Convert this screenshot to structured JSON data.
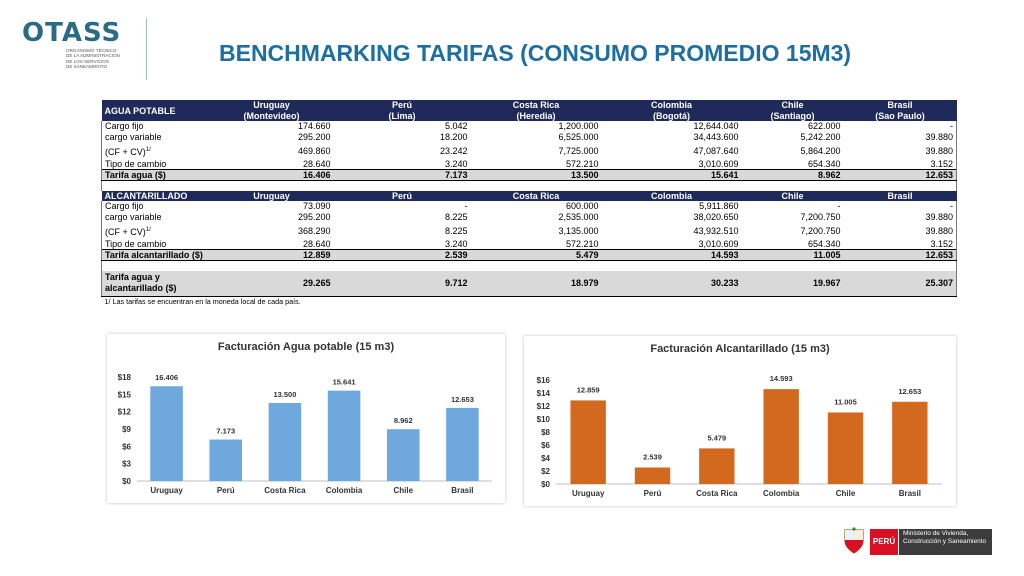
{
  "header": {
    "logo_text": "OTASS",
    "logo_subtitle": [
      "ORGANISMO TÉCNICO",
      "DE LA ADMINISTRACIÓN",
      "DE LOS SERVICIOS",
      "DE SANEAMIENTO"
    ],
    "title": "BENCHMARKING TARIFAS (CONSUMO PROMEDIO 15M3)"
  },
  "agua": {
    "section_label": "AGUA POTABLE",
    "countries": [
      {
        "name": "Uruguay",
        "city": "(Montevideo)"
      },
      {
        "name": "Perú",
        "city": "(Lima)"
      },
      {
        "name": "Costa Rica",
        "city": "(Heredia)"
      },
      {
        "name": "Colombia",
        "city": "(Bogotá)"
      },
      {
        "name": "Chile",
        "city": "(Santiago)"
      },
      {
        "name": "Brasil",
        "city": "(Sao Paulo)"
      }
    ],
    "rows": [
      {
        "label": "Cargo fijo",
        "values": [
          "174.660",
          "5.042",
          "1,200.000",
          "12,644.040",
          "622.000",
          "-"
        ]
      },
      {
        "label": "cargo variable",
        "values": [
          "295.200",
          "18.200",
          "6,525.000",
          "34,443.600",
          "5,242.200",
          "39.880"
        ]
      },
      {
        "label": "(CF + CV)",
        "sup": "1/",
        "values": [
          "469.860",
          "23.242",
          "7,725.000",
          "47,087.640",
          "5,864.200",
          "39.880"
        ]
      },
      {
        "label": "Tipo de cambio",
        "values": [
          "28.640",
          "3.240",
          "572.210",
          "3,010.609",
          "654.340",
          "3.152"
        ]
      }
    ],
    "total": {
      "label": "Tarifa agua ($)",
      "values": [
        "16.406",
        "7.173",
        "13.500",
        "15.641",
        "8.962",
        "12.653"
      ]
    }
  },
  "alcantarillado": {
    "section_label": "ALCANTARILLADO",
    "countries": [
      "Uruguay",
      "Perú",
      "Costa Rica",
      "Colombia",
      "Chile",
      "Brasil"
    ],
    "rows": [
      {
        "label": "Cargo fijo",
        "values": [
          "73.090",
          "-",
          "600.000",
          "5,911.860",
          "-",
          "-"
        ]
      },
      {
        "label": "cargo variable",
        "values": [
          "295.200",
          "8.225",
          "2,535.000",
          "38,020.650",
          "7,200.750",
          "39.880"
        ]
      },
      {
        "label": "(CF + CV)",
        "sup": "1/",
        "values": [
          "368.290",
          "8.225",
          "3,135.000",
          "43,932.510",
          "7,200.750",
          "39.880"
        ]
      },
      {
        "label": "Tipo de cambio",
        "values": [
          "28.640",
          "3.240",
          "572.210",
          "3,010.609",
          "654.340",
          "3.152"
        ]
      }
    ],
    "total": {
      "label": "Tarifa alcantarillado ($)",
      "values": [
        "12.859",
        "2.539",
        "5.479",
        "14.593",
        "11.005",
        "12.653"
      ]
    }
  },
  "combined": {
    "label": "Tarifa agua y alcantarillado ($)",
    "values": [
      "29.265",
      "9.712",
      "18.979",
      "30.233",
      "19.967",
      "25.307"
    ]
  },
  "note": "1/ Las tarifas se encuentran en la moneda local de cada país.",
  "chart_data": [
    {
      "type": "bar",
      "title": "Facturación Agua potable (15 m3)",
      "categories": [
        "Uruguay",
        "Perú",
        "Costa Rica",
        "Colombia",
        "Chile",
        "Brasil"
      ],
      "values": [
        16.406,
        7.173,
        13.5,
        15.641,
        8.962,
        12.653
      ],
      "value_labels": [
        "16.406",
        "7.173",
        "13.500",
        "15.641",
        "8.962",
        "12.653"
      ],
      "yticks": [
        "$0",
        "$3",
        "$6",
        "$9",
        "$12",
        "$15",
        "$18"
      ],
      "ylim": [
        0,
        18
      ],
      "color": "#6fa8dc",
      "grid": false,
      "legend": "none"
    },
    {
      "type": "bar",
      "title": "Facturación Alcantarillado (15 m3)",
      "categories": [
        "Uruguay",
        "Perú",
        "Costa Rica",
        "Colombia",
        "Chile",
        "Brasil"
      ],
      "values": [
        12.859,
        2.539,
        5.479,
        14.593,
        11.005,
        12.653
      ],
      "value_labels": [
        "12.859",
        "2.539",
        "5.479",
        "14.593",
        "11.005",
        "12.653"
      ],
      "yticks": [
        "$0",
        "$2",
        "$4",
        "$6",
        "$8",
        "$10",
        "$12",
        "$14",
        "$16"
      ],
      "ylim": [
        0,
        16
      ],
      "color": "#d2691e",
      "grid": false,
      "legend": "none"
    }
  ],
  "footer": {
    "country": "PERÚ",
    "ministry": "Ministerio de Vivienda, Construcción y Saneamiento"
  },
  "colors": {
    "title": "#1e6e9f",
    "table_header": "#1f2a5a",
    "total_row": "#d9d9d9"
  }
}
